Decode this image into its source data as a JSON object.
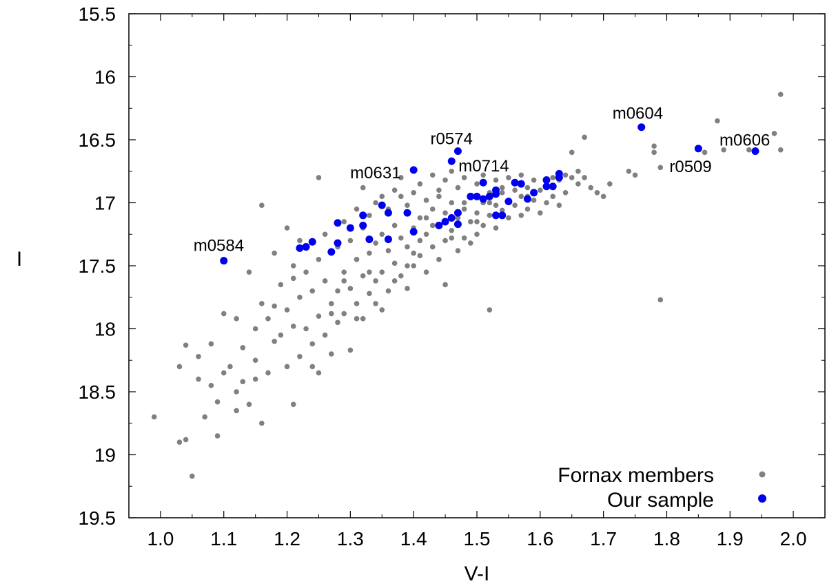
{
  "chart_data": {
    "type": "scatter",
    "xlabel": "V-I",
    "ylabel": "I",
    "xlim": [
      0.95,
      2.05
    ],
    "ylim": [
      19.5,
      15.5
    ],
    "y_inverted": true,
    "grid": false,
    "legend_position": "bottom-right",
    "x_ticks": [
      "1.0",
      "1.1",
      "1.2",
      "1.3",
      "1.4",
      "1.5",
      "1.6",
      "1.7",
      "1.8",
      "1.9",
      "2.0"
    ],
    "y_ticks": [
      "15.5",
      "16",
      "16.5",
      "17",
      "17.5",
      "18",
      "18.5",
      "19",
      "19.5"
    ],
    "colors": {
      "fornax": "#808080",
      "sample": "#0000ee"
    },
    "series": [
      {
        "name": "Fornax members",
        "color": "#808080",
        "points": [
          [
            0.99,
            18.7
          ],
          [
            1.03,
            18.9
          ],
          [
            1.04,
            18.88
          ],
          [
            1.05,
            19.17
          ],
          [
            1.03,
            18.3
          ],
          [
            1.04,
            18.13
          ],
          [
            1.06,
            18.22
          ],
          [
            1.06,
            18.4
          ],
          [
            1.07,
            18.7
          ],
          [
            1.08,
            18.12
          ],
          [
            1.08,
            18.45
          ],
          [
            1.09,
            18.58
          ],
          [
            1.09,
            18.85
          ],
          [
            1.1,
            18.35
          ],
          [
            1.1,
            17.88
          ],
          [
            1.11,
            18.3
          ],
          [
            1.12,
            18.5
          ],
          [
            1.12,
            18.65
          ],
          [
            1.13,
            18.15
          ],
          [
            1.13,
            18.42
          ],
          [
            1.14,
            18.6
          ],
          [
            1.14,
            17.55
          ],
          [
            1.15,
            18.0
          ],
          [
            1.15,
            18.25
          ],
          [
            1.16,
            17.8
          ],
          [
            1.16,
            18.75
          ],
          [
            1.16,
            17.02
          ],
          [
            1.17,
            17.92
          ],
          [
            1.17,
            18.35
          ],
          [
            1.18,
            17.4
          ],
          [
            1.18,
            18.1
          ],
          [
            1.19,
            17.65
          ],
          [
            1.19,
            18.05
          ],
          [
            1.2,
            17.85
          ],
          [
            1.2,
            18.3
          ],
          [
            1.2,
            17.2
          ],
          [
            1.21,
            17.5
          ],
          [
            1.21,
            17.98
          ],
          [
            1.21,
            18.6
          ],
          [
            1.22,
            17.3
          ],
          [
            1.22,
            17.75
          ],
          [
            1.22,
            18.22
          ],
          [
            1.23,
            17.55
          ],
          [
            1.23,
            18.0
          ],
          [
            1.24,
            17.7
          ],
          [
            1.24,
            18.12
          ],
          [
            1.25,
            17.45
          ],
          [
            1.25,
            17.9
          ],
          [
            1.25,
            18.35
          ],
          [
            1.25,
            16.8
          ],
          [
            1.26,
            17.25
          ],
          [
            1.26,
            17.62
          ],
          [
            1.26,
            18.05
          ],
          [
            1.27,
            17.4
          ],
          [
            1.27,
            17.8
          ],
          [
            1.27,
            18.2
          ],
          [
            1.28,
            17.35
          ],
          [
            1.28,
            17.7
          ],
          [
            1.28,
            17.95
          ],
          [
            1.29,
            17.15
          ],
          [
            1.29,
            17.55
          ],
          [
            1.29,
            17.88
          ],
          [
            1.3,
            17.3
          ],
          [
            1.3,
            17.68
          ],
          [
            1.3,
            18.17
          ],
          [
            1.31,
            17.05
          ],
          [
            1.31,
            17.45
          ],
          [
            1.31,
            17.8
          ],
          [
            1.32,
            17.2
          ],
          [
            1.32,
            17.58
          ],
          [
            1.32,
            17.92
          ],
          [
            1.32,
            16.88
          ],
          [
            1.33,
            17.1
          ],
          [
            1.33,
            17.4
          ],
          [
            1.33,
            17.72
          ],
          [
            1.34,
            17.0
          ],
          [
            1.34,
            17.32
          ],
          [
            1.34,
            17.62
          ],
          [
            1.35,
            16.95
          ],
          [
            1.35,
            17.25
          ],
          [
            1.35,
            17.55
          ],
          [
            1.35,
            17.85
          ],
          [
            1.36,
            17.08
          ],
          [
            1.36,
            17.38
          ],
          [
            1.36,
            17.7
          ],
          [
            1.37,
            16.9
          ],
          [
            1.37,
            17.18
          ],
          [
            1.37,
            17.48
          ],
          [
            1.38,
            16.95
          ],
          [
            1.38,
            17.28
          ],
          [
            1.38,
            17.58
          ],
          [
            1.38,
            16.8
          ],
          [
            1.39,
            17.02
          ],
          [
            1.39,
            17.35
          ],
          [
            1.39,
            17.68
          ],
          [
            1.4,
            16.92
          ],
          [
            1.4,
            17.2
          ],
          [
            1.4,
            17.5
          ],
          [
            1.41,
            16.85
          ],
          [
            1.41,
            17.12
          ],
          [
            1.41,
            17.42
          ],
          [
            1.42,
            16.98
          ],
          [
            1.42,
            17.25
          ],
          [
            1.42,
            17.55
          ],
          [
            1.43,
            16.78
          ],
          [
            1.43,
            17.05
          ],
          [
            1.43,
            17.35
          ],
          [
            1.44,
            16.9
          ],
          [
            1.44,
            17.18
          ],
          [
            1.44,
            17.45
          ],
          [
            1.45,
            16.82
          ],
          [
            1.45,
            17.08
          ],
          [
            1.45,
            17.3
          ],
          [
            1.45,
            17.65
          ],
          [
            1.46,
            16.75
          ],
          [
            1.46,
            17.0
          ],
          [
            1.46,
            17.22
          ],
          [
            1.47,
            16.88
          ],
          [
            1.47,
            17.12
          ],
          [
            1.47,
            17.38
          ],
          [
            1.48,
            16.8
          ],
          [
            1.48,
            17.05
          ],
          [
            1.48,
            17.28
          ],
          [
            1.49,
            16.95
          ],
          [
            1.49,
            17.15
          ],
          [
            1.49,
            17.32
          ],
          [
            1.5,
            16.85
          ],
          [
            1.5,
            17.08
          ],
          [
            1.5,
            17.25
          ],
          [
            1.51,
            16.78
          ],
          [
            1.51,
            17.0
          ],
          [
            1.51,
            17.18
          ],
          [
            1.52,
            16.92
          ],
          [
            1.52,
            17.1
          ],
          [
            1.52,
            17.85
          ],
          [
            1.53,
            16.82
          ],
          [
            1.53,
            17.02
          ],
          [
            1.53,
            17.2
          ],
          [
            1.54,
            16.88
          ],
          [
            1.54,
            17.06
          ],
          [
            1.55,
            16.8
          ],
          [
            1.55,
            16.98
          ],
          [
            1.55,
            17.12
          ],
          [
            1.56,
            16.85
          ],
          [
            1.56,
            17.02
          ],
          [
            1.57,
            16.78
          ],
          [
            1.57,
            16.95
          ],
          [
            1.57,
            17.1
          ],
          [
            1.58,
            16.88
          ],
          [
            1.58,
            17.05
          ],
          [
            1.59,
            16.82
          ],
          [
            1.59,
            16.98
          ],
          [
            1.6,
            16.9
          ],
          [
            1.6,
            17.08
          ],
          [
            1.61,
            16.85
          ],
          [
            1.61,
            17.0
          ],
          [
            1.62,
            16.8
          ],
          [
            1.62,
            16.95
          ],
          [
            1.63,
            16.82
          ],
          [
            1.63,
            17.02
          ],
          [
            1.64,
            16.78
          ],
          [
            1.64,
            16.92
          ],
          [
            1.65,
            16.8
          ],
          [
            1.65,
            16.6
          ],
          [
            1.66,
            16.85
          ],
          [
            1.66,
            16.75
          ],
          [
            1.67,
            16.8
          ],
          [
            1.67,
            16.48
          ],
          [
            1.68,
            16.88
          ],
          [
            1.69,
            16.92
          ],
          [
            1.7,
            16.95
          ],
          [
            1.71,
            16.85
          ],
          [
            1.74,
            16.75
          ],
          [
            1.75,
            16.78
          ],
          [
            1.78,
            16.55
          ],
          [
            1.78,
            16.6
          ],
          [
            1.79,
            16.72
          ],
          [
            1.79,
            17.77
          ],
          [
            1.86,
            16.6
          ],
          [
            1.88,
            16.35
          ],
          [
            1.89,
            16.58
          ],
          [
            1.93,
            16.58
          ],
          [
            1.97,
            16.45
          ],
          [
            1.98,
            16.58
          ],
          [
            1.98,
            16.14
          ],
          [
            1.29,
            17.62
          ],
          [
            1.31,
            17.92
          ],
          [
            1.34,
            17.8
          ],
          [
            1.36,
            17.05
          ],
          [
            1.39,
            17.5
          ],
          [
            1.41,
            17.3
          ],
          [
            1.43,
            17.18
          ],
          [
            1.44,
            16.95
          ],
          [
            1.46,
            17.28
          ],
          [
            1.48,
            17.0
          ],
          [
            1.5,
            17.15
          ],
          [
            1.52,
            17.0
          ],
          [
            1.54,
            16.92
          ],
          [
            1.56,
            16.9
          ],
          [
            1.58,
            16.95
          ],
          [
            1.27,
            17.88
          ],
          [
            1.24,
            18.3
          ],
          [
            1.21,
            17.6
          ],
          [
            1.18,
            17.82
          ],
          [
            1.15,
            18.4
          ],
          [
            1.12,
            17.92
          ],
          [
            1.33,
            17.55
          ],
          [
            1.37,
            17.62
          ],
          [
            1.4,
            17.4
          ],
          [
            1.42,
            17.12
          ]
        ]
      },
      {
        "name": "Our sample",
        "color": "#0000ee",
        "points": [
          [
            1.1,
            17.46
          ],
          [
            1.22,
            17.36
          ],
          [
            1.23,
            17.35
          ],
          [
            1.24,
            17.31
          ],
          [
            1.27,
            17.39
          ],
          [
            1.28,
            17.32
          ],
          [
            1.28,
            17.16
          ],
          [
            1.3,
            17.2
          ],
          [
            1.32,
            17.18
          ],
          [
            1.32,
            17.1
          ],
          [
            1.33,
            17.29
          ],
          [
            1.35,
            17.02
          ],
          [
            1.36,
            17.08
          ],
          [
            1.36,
            17.29
          ],
          [
            1.39,
            17.08
          ],
          [
            1.4,
            17.23
          ],
          [
            1.4,
            16.74
          ],
          [
            1.44,
            17.18
          ],
          [
            1.45,
            17.15
          ],
          [
            1.46,
            17.12
          ],
          [
            1.46,
            16.67
          ],
          [
            1.47,
            16.59
          ],
          [
            1.47,
            17.17
          ],
          [
            1.47,
            17.08
          ],
          [
            1.49,
            16.95
          ],
          [
            1.5,
            16.95
          ],
          [
            1.51,
            16.97
          ],
          [
            1.51,
            16.84
          ],
          [
            1.52,
            16.95
          ],
          [
            1.53,
            16.93
          ],
          [
            1.53,
            16.9
          ],
          [
            1.53,
            17.1
          ],
          [
            1.54,
            17.1
          ],
          [
            1.55,
            16.99
          ],
          [
            1.56,
            16.84
          ],
          [
            1.57,
            16.85
          ],
          [
            1.58,
            16.97
          ],
          [
            1.59,
            16.92
          ],
          [
            1.61,
            16.87
          ],
          [
            1.61,
            16.82
          ],
          [
            1.62,
            16.87
          ],
          [
            1.63,
            16.8
          ],
          [
            1.63,
            16.77
          ],
          [
            1.76,
            16.4
          ],
          [
            1.85,
            16.57
          ],
          [
            1.94,
            16.59
          ]
        ]
      }
    ],
    "annotations": [
      {
        "label": "m0584",
        "x": 1.1,
        "y": 17.46
      },
      {
        "label": "m0631",
        "x": 1.4,
        "y": 16.74
      },
      {
        "label": "r0574",
        "x": 1.47,
        "y": 16.59
      },
      {
        "label": "m0714",
        "x": 1.46,
        "y": 16.67
      },
      {
        "label": "m0604",
        "x": 1.76,
        "y": 16.4
      },
      {
        "label": "r0509",
        "x": 1.85,
        "y": 16.57
      },
      {
        "label": "m0606",
        "x": 1.94,
        "y": 16.59
      }
    ]
  }
}
